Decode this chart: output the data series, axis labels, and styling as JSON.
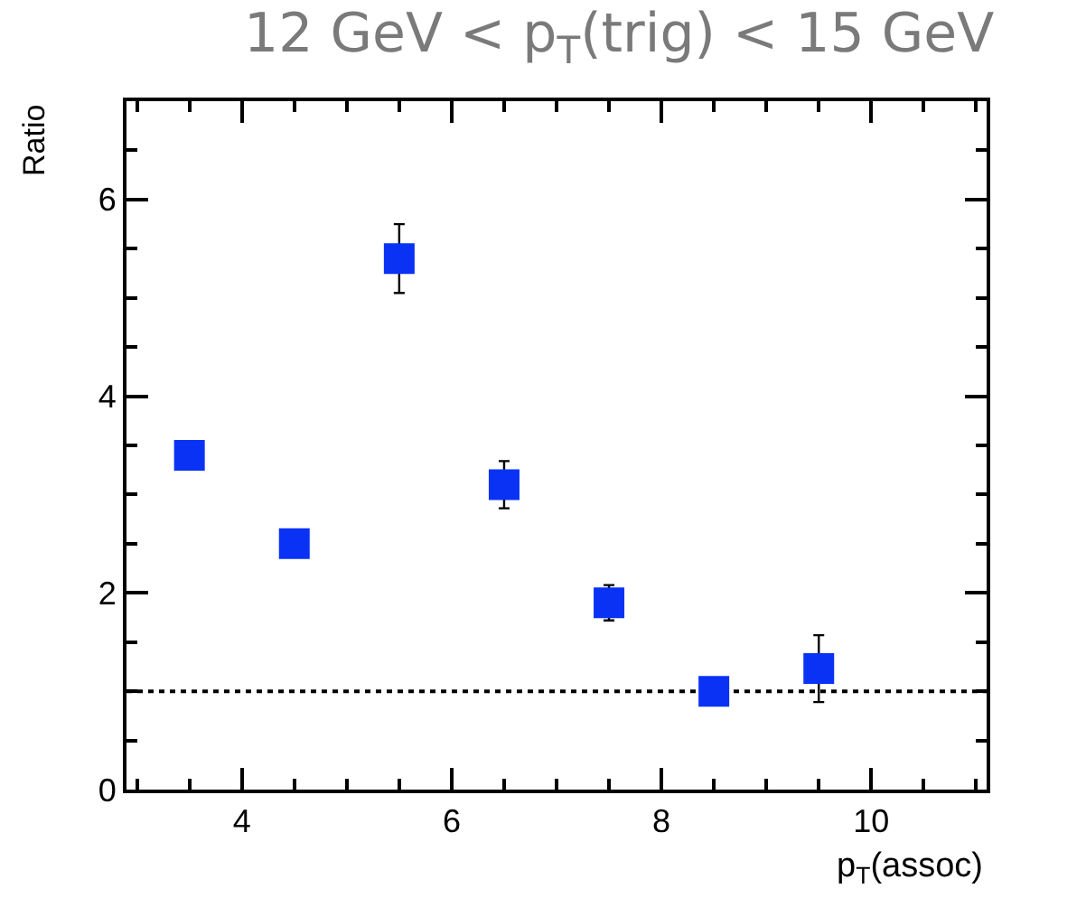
{
  "chart_data": {
    "type": "scatter",
    "title": "12 GeV < p$_{T}$(trig) < 15 GeV",
    "xlabel": "p$_{T}$(assoc)",
    "ylabel": "Ratio",
    "x": [
      3.5,
      4.5,
      5.5,
      6.5,
      7.5,
      8.5,
      9.5
    ],
    "series": [
      {
        "color": "#0a32f5",
        "values": [
          3.4,
          2.5,
          5.4,
          3.1,
          1.9,
          1.0,
          1.23
        ],
        "errors": [
          null,
          null,
          0.35,
          0.24,
          0.18,
          null,
          0.34
        ]
      }
    ],
    "xlim": [
      2.9,
      11.1
    ],
    "ylim": [
      0,
      7
    ],
    "xticks": [
      4,
      6,
      8,
      10
    ],
    "yticks": [
      0,
      2,
      4,
      6
    ],
    "marker": "square",
    "grid": false,
    "legend": false,
    "ref_lines": [
      {
        "axis": "y",
        "value": 1,
        "line_style": "dotted",
        "color": "#000000"
      }
    ]
  }
}
